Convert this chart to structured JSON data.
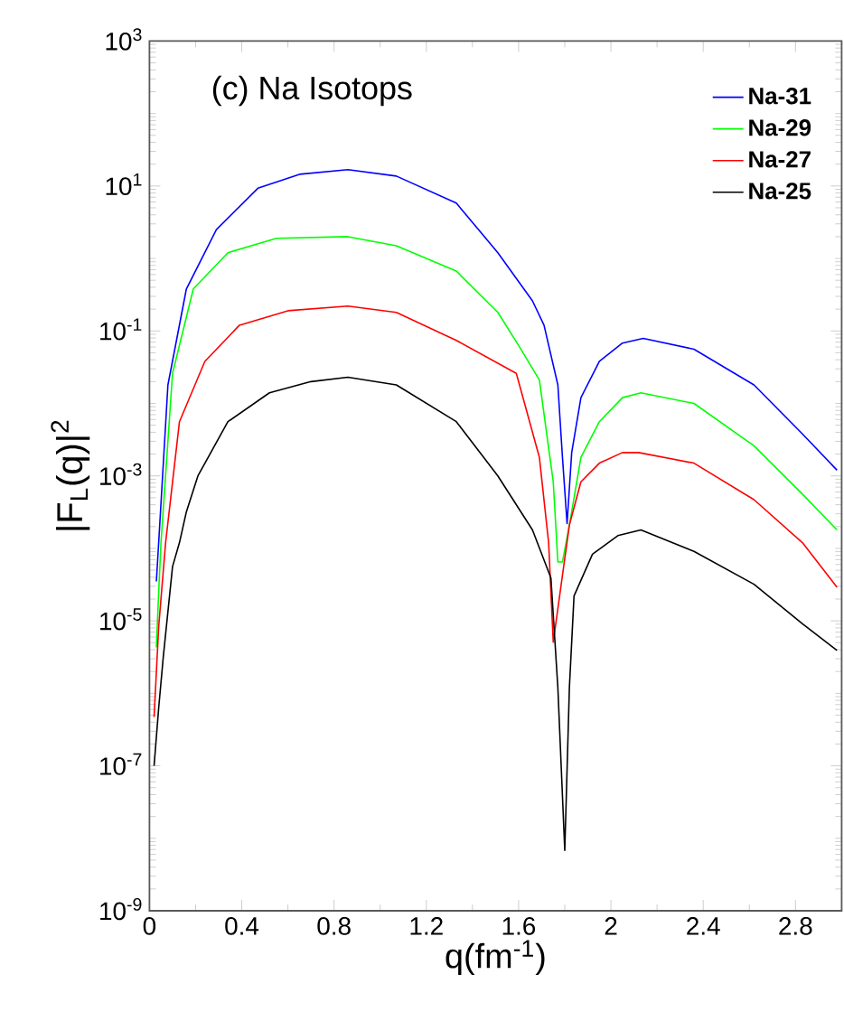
{
  "chart_data": {
    "type": "line",
    "title": "(c) Na Isotops",
    "xlabel": "q(fm$^{-1}$)",
    "ylabel": "|F$_{L}$(q)|$^{2}$",
    "log": "y",
    "grid": false,
    "legend": "top right",
    "marker": "none",
    "line_style": "solid",
    "xlim": [
      0,
      3
    ],
    "xticks": [
      0,
      0.4,
      0.8,
      1.2,
      1.6,
      2,
      2.4,
      2.8
    ],
    "ylim": [
      1e-09,
      1000
    ],
    "yticks": [
      {
        "value": 1e-09,
        "label": "10$^{-9}$"
      },
      {
        "value": 1e-07,
        "label": "10$^{-7}$"
      },
      {
        "value": 1e-05,
        "label": "10$^{-5}$"
      },
      {
        "value": 0.001,
        "label": "10$^{-3}$"
      },
      {
        "value": 0.1,
        "label": "10$^{-1}$"
      },
      {
        "value": 10,
        "label": "10$^{1}$"
      },
      {
        "value": 1000,
        "label": "10$^{3}$"
      }
    ],
    "series": [
      {
        "name": "Na-31",
        "color": "#0000ff",
        "x": [
          0.03,
          0.04,
          0.08,
          0.16,
          0.29,
          0.47,
          0.65,
          0.86,
          1.07,
          1.33,
          1.51,
          1.66,
          1.71,
          1.77,
          1.79,
          1.81,
          1.83,
          1.87,
          1.95,
          2.05,
          2.14,
          2.36,
          2.62,
          2.83,
          2.98
        ],
        "values": [
          3.5e-05,
          0.00012,
          0.018,
          0.38,
          2.5,
          9.3,
          14.5,
          16.8,
          13.7,
          5.8,
          1.2,
          0.26,
          0.12,
          0.018,
          0.0018,
          0.00022,
          0.0021,
          0.012,
          0.038,
          0.068,
          0.079,
          0.056,
          0.018,
          0.0038,
          0.0012
        ]
      },
      {
        "name": "Na-29",
        "color": "#00ff00",
        "x": [
          0.03,
          0.04,
          0.05,
          0.1,
          0.19,
          0.34,
          0.55,
          0.86,
          1.07,
          1.33,
          1.51,
          1.6,
          1.69,
          1.75,
          1.77,
          1.79,
          1.82,
          1.87,
          1.95,
          2.05,
          2.13,
          2.36,
          2.62,
          2.83,
          2.98
        ],
        "values": [
          4.3e-06,
          2.5e-05,
          0.00012,
          0.026,
          0.38,
          1.2,
          1.9,
          2.0,
          1.5,
          0.67,
          0.18,
          0.063,
          0.021,
          0.00083,
          6.5e-05,
          6.5e-05,
          0.00021,
          0.0018,
          0.0056,
          0.012,
          0.014,
          0.01,
          0.0026,
          0.00056,
          0.00018
        ]
      },
      {
        "name": "Na-27",
        "color": "#ff0000",
        "x": [
          0.02,
          0.04,
          0.07,
          0.13,
          0.24,
          0.39,
          0.6,
          0.86,
          1.07,
          1.33,
          1.59,
          1.69,
          1.73,
          1.75,
          1.82,
          1.87,
          1.95,
          2.05,
          2.12,
          2.36,
          2.62,
          2.83,
          2.98
        ],
        "values": [
          4.7e-07,
          8.3e-06,
          0.00012,
          0.0056,
          0.038,
          0.12,
          0.19,
          0.22,
          0.18,
          0.074,
          0.026,
          0.0018,
          0.00012,
          5.1e-06,
          0.00021,
          0.00083,
          0.0015,
          0.0021,
          0.0021,
          0.0015,
          0.00047,
          0.00012,
          2.9e-05
        ]
      },
      {
        "name": "Na-25",
        "color": "#000000",
        "x": [
          0.02,
          0.04,
          0.06,
          0.1,
          0.13,
          0.16,
          0.21,
          0.34,
          0.52,
          0.7,
          0.86,
          1.07,
          1.33,
          1.51,
          1.66,
          1.74,
          1.77,
          1.8,
          1.82,
          1.84,
          1.92,
          2.03,
          2.13,
          2.36,
          2.62,
          2.83,
          2.98
        ],
        "values": [
          1e-07,
          6.3e-07,
          3.2e-06,
          5.6e-05,
          0.00012,
          0.00032,
          0.001,
          0.0056,
          0.014,
          0.02,
          0.023,
          0.018,
          0.0056,
          0.001,
          0.00018,
          3.9e-05,
          1.2e-06,
          6.8e-09,
          1.2e-06,
          2.2e-05,
          8.3e-05,
          0.00015,
          0.00018,
          9.1e-05,
          3.2e-05,
          9.1e-06,
          3.9e-06
        ]
      }
    ]
  }
}
